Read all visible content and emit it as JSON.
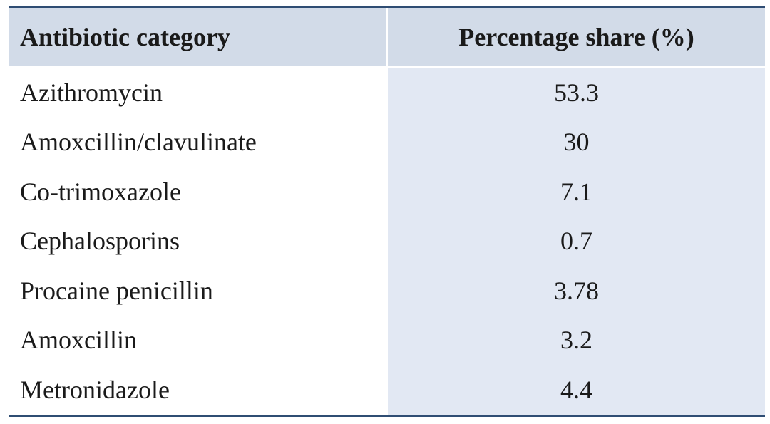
{
  "table": {
    "headers": {
      "category": "Antibiotic category",
      "share": "Percentage share (%)"
    },
    "rows": [
      {
        "category": "Azithromycin",
        "share": "53.3"
      },
      {
        "category": "Amoxcillin/clavulinate",
        "share": "30"
      },
      {
        "category": "Co-trimoxazole",
        "share": "7.1"
      },
      {
        "category": "Cephalosporins",
        "share": "0.7"
      },
      {
        "category": "Procaine penicillin",
        "share": "3.78"
      },
      {
        "category": "Amoxcillin",
        "share": "3.2"
      },
      {
        "category": "Metronidazole",
        "share": "4.4"
      }
    ]
  },
  "colors": {
    "rule": "#2f4d73",
    "header_bg": "#d2dbe8",
    "value_col_bg": "#e2e8f3"
  }
}
